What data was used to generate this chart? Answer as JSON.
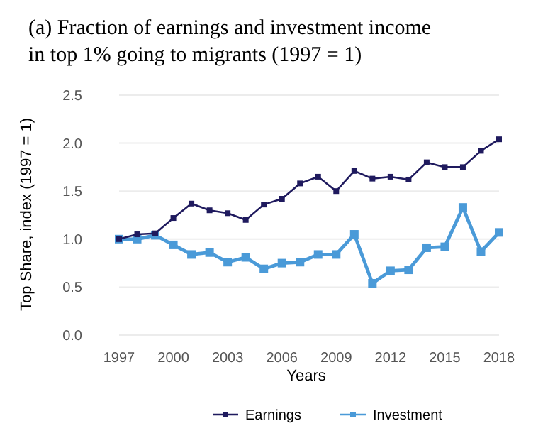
{
  "chart_data": {
    "type": "line",
    "title": "(a) Fraction of earnings and investment income",
    "subtitle": "in top 1% going to migrants (1997 = 1)",
    "xlabel": "Years",
    "ylabel": "Top Share, index (1997 = 1)",
    "x": [
      1997,
      1998,
      1999,
      2000,
      2001,
      2002,
      2003,
      2004,
      2005,
      2006,
      2007,
      2008,
      2009,
      2010,
      2011,
      2012,
      2013,
      2014,
      2015,
      2016,
      2017,
      2018
    ],
    "series": [
      {
        "name": "Earnings",
        "color": "#1f1a5e",
        "values": [
          1.0,
          1.05,
          1.06,
          1.22,
          1.37,
          1.3,
          1.27,
          1.2,
          1.36,
          1.42,
          1.58,
          1.65,
          1.5,
          1.71,
          1.63,
          1.65,
          1.62,
          1.8,
          1.75,
          1.75,
          1.92,
          2.04
        ]
      },
      {
        "name": "Investment",
        "color": "#4a9ad8",
        "values": [
          1.0,
          1.0,
          1.04,
          0.94,
          0.84,
          0.86,
          0.76,
          0.81,
          0.69,
          0.75,
          0.76,
          0.84,
          0.84,
          1.05,
          0.54,
          0.67,
          0.68,
          0.91,
          0.92,
          1.33,
          0.87,
          1.07
        ]
      }
    ],
    "xlim": [
      1997,
      2018
    ],
    "xticks": [
      1997,
      2000,
      2003,
      2006,
      2009,
      2012,
      2015,
      2018
    ],
    "ylim": [
      0,
      2.5
    ],
    "yticks": [
      {
        "value": 0,
        "label": "0.0"
      },
      {
        "value": 0.5,
        "label": "0.5"
      },
      {
        "value": 1,
        "label": "1.0"
      },
      {
        "value": 1.5,
        "label": "1.5"
      },
      {
        "value": 2,
        "label": "2.0"
      },
      {
        "value": 2.5,
        "label": "2.5"
      }
    ],
    "grid": "y",
    "legend": "bottom",
    "marker": "square",
    "line_style": "solid"
  }
}
